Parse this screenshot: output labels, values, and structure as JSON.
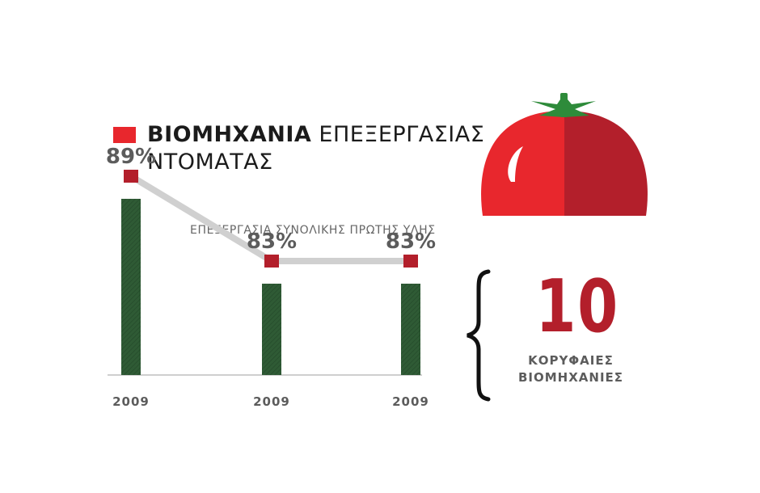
{
  "title": {
    "bold": "ΒΙΟΜΗΧΑΝΙΑ",
    "rest": "ΕΠΕΞΕΡΓΑΣΙΑΣ",
    "line2": "ΝΤΟΜΑΤΑΣ"
  },
  "colors": {
    "accent_red": "#e8272d",
    "dark_red": "#b31f2b",
    "bar_green": "#2f5b35",
    "line_gray": "#d0d0d0",
    "text_gray": "#5c5c5c"
  },
  "chart_data": {
    "type": "bar",
    "subtitle": "ΕΠΕΞΕΡΓΑΣΙΑ ΣΥΝΟΛΙΚΗΣ ΠΡΩΤΗΣ ΥΛΗΣ",
    "categories": [
      "2009",
      "2009",
      "2009"
    ],
    "values": [
      89,
      83,
      83
    ],
    "value_labels": [
      "89%",
      "83%",
      "83%"
    ],
    "ylim": [
      75,
      92
    ],
    "grid": false,
    "legend": "none",
    "overlay": "line connecting values with square markers"
  },
  "highlight": {
    "number": "10",
    "caption_line1": "ΚΟΡΥΦΑΙΕΣ",
    "caption_line2": "ΒΙΟΜΗΧΑΝΙΕΣ"
  },
  "icons": [
    "tomato-icon",
    "curly-brace-icon"
  ]
}
